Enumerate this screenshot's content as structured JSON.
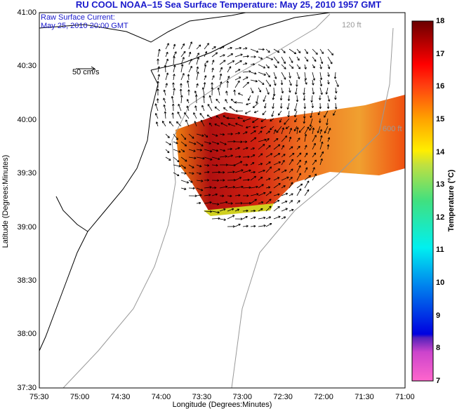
{
  "title": "RU COOL  NOAA–15  Sea Surface Temperature:  May 25, 2010 1957 GMT",
  "annotation": [
    "Raw Surface Current:",
    "May 25, 2010 20:00 GMT"
  ],
  "scale_label": "50 cm/s",
  "isobaths": {
    "shallow": "120 ft",
    "deep": "600 ft"
  },
  "chart_data": {
    "type": "heatmap",
    "title": "RU COOL  NOAA–15  Sea Surface Temperature:  May 25, 2010 1957 GMT",
    "xlabel": "Longitude (Degrees:Minutes)",
    "ylabel": "Latitude (Degrees:Minutes)",
    "xticks": [
      "75:30",
      "75:00",
      "74:30",
      "74:00",
      "73:30",
      "73:00",
      "72:30",
      "72:00",
      "71:30",
      "71:00"
    ],
    "yticks": [
      "41:00",
      "40:30",
      "40:00",
      "39:30",
      "39:00",
      "38:30",
      "38:00",
      "37:30"
    ],
    "colorbar": {
      "label": "Temperature (°C)",
      "ticks": [
        "18",
        "17",
        "16",
        "15",
        "14",
        "13",
        "12",
        "11",
        "10",
        "9",
        "8",
        "7"
      ],
      "range": [
        7,
        18
      ]
    }
  }
}
